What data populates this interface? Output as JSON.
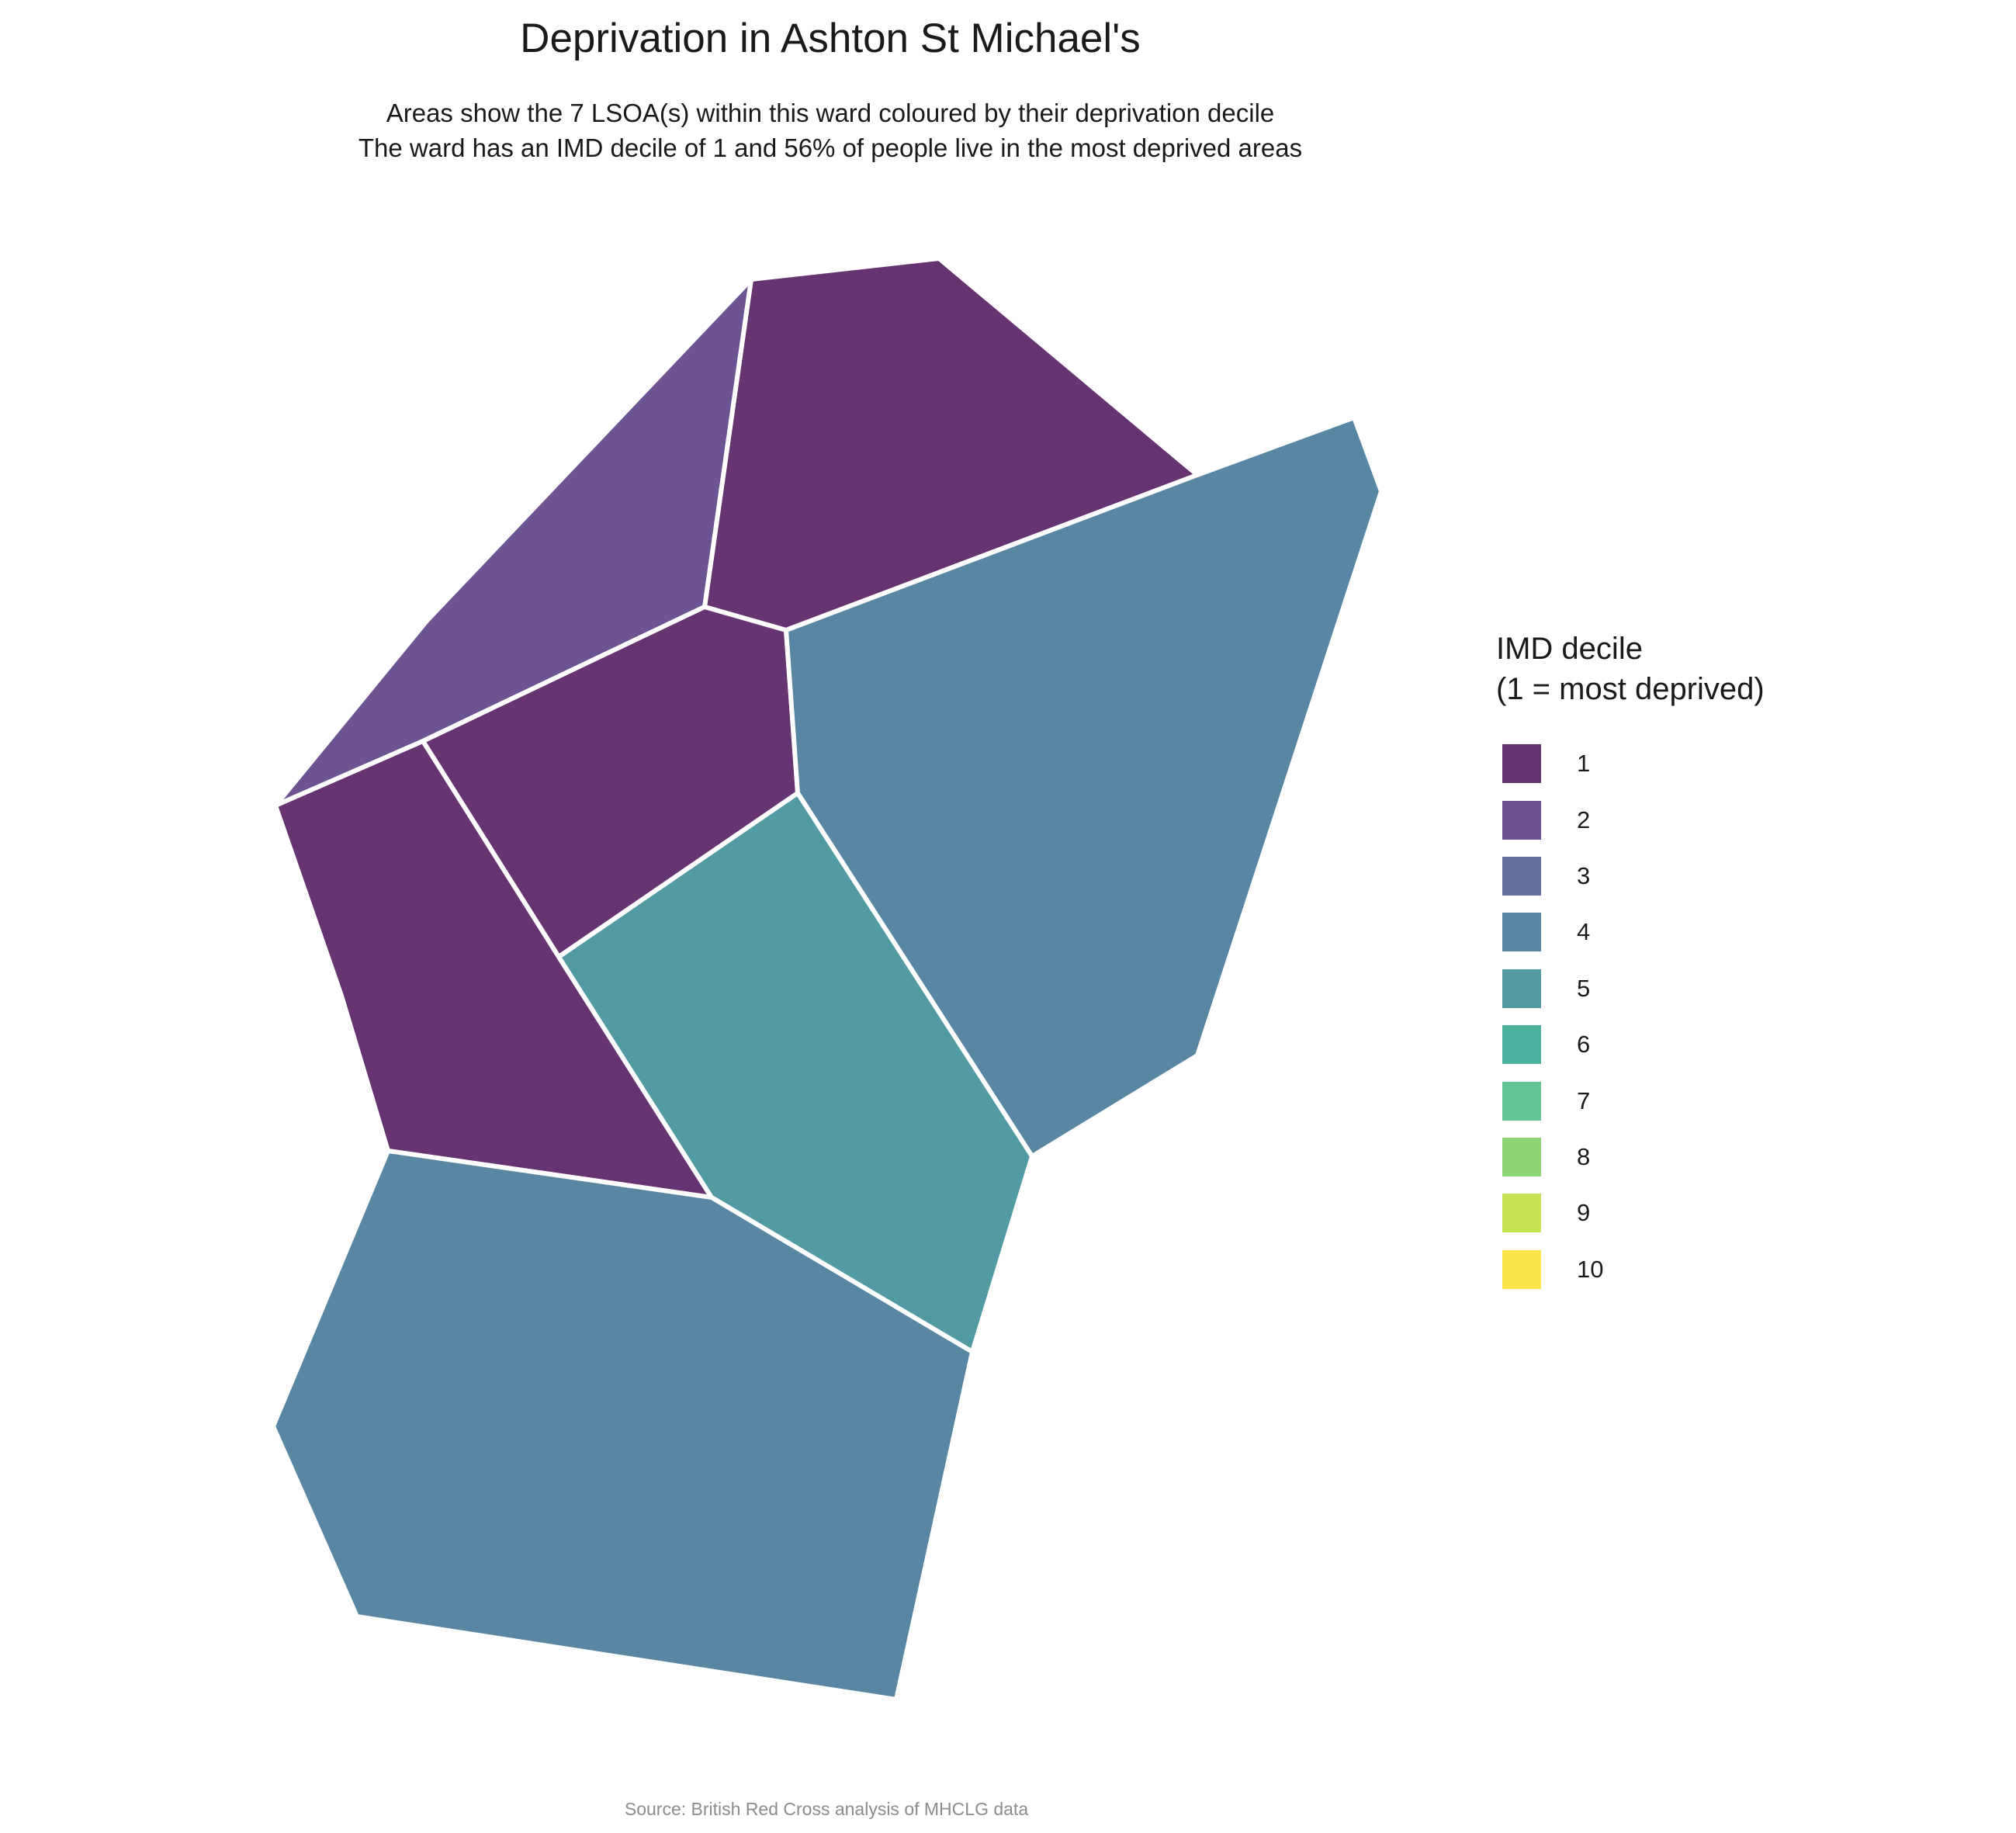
{
  "title": "Deprivation in Ashton St Michael's",
  "subtitle_line1": "Areas show the 7 LSOA(s) within this ward coloured by their deprivation decile",
  "subtitle_line2": "The ward has an IMD decile of 1 and 56% of people live in the most deprived areas",
  "legend": {
    "title_line1": "IMD decile",
    "title_line2": "(1 = most deprived)",
    "items": [
      {
        "label": "1",
        "color": "#673472"
      },
      {
        "label": "2",
        "color": "#6b5491"
      },
      {
        "label": "3",
        "color": "#636f9f"
      },
      {
        "label": "4",
        "color": "#5986a3"
      },
      {
        "label": "5",
        "color": "#529ba2"
      },
      {
        "label": "6",
        "color": "#4db29d"
      },
      {
        "label": "7",
        "color": "#62c593"
      },
      {
        "label": "8",
        "color": "#8ed674"
      },
      {
        "label": "9",
        "color": "#c6e452"
      },
      {
        "label": "10",
        "color": "#fbe74c"
      }
    ]
  },
  "areas": [
    {
      "name": "lsoa-north",
      "decile": 1
    },
    {
      "name": "lsoa-northwest",
      "decile": 2
    },
    {
      "name": "lsoa-central",
      "decile": 1
    },
    {
      "name": "lsoa-west",
      "decile": 1
    },
    {
      "name": "lsoa-east",
      "decile": 4
    },
    {
      "name": "lsoa-centre-south",
      "decile": 5
    },
    {
      "name": "lsoa-south",
      "decile": 4
    }
  ],
  "source": "Source: British Red Cross analysis of MHCLG data"
}
